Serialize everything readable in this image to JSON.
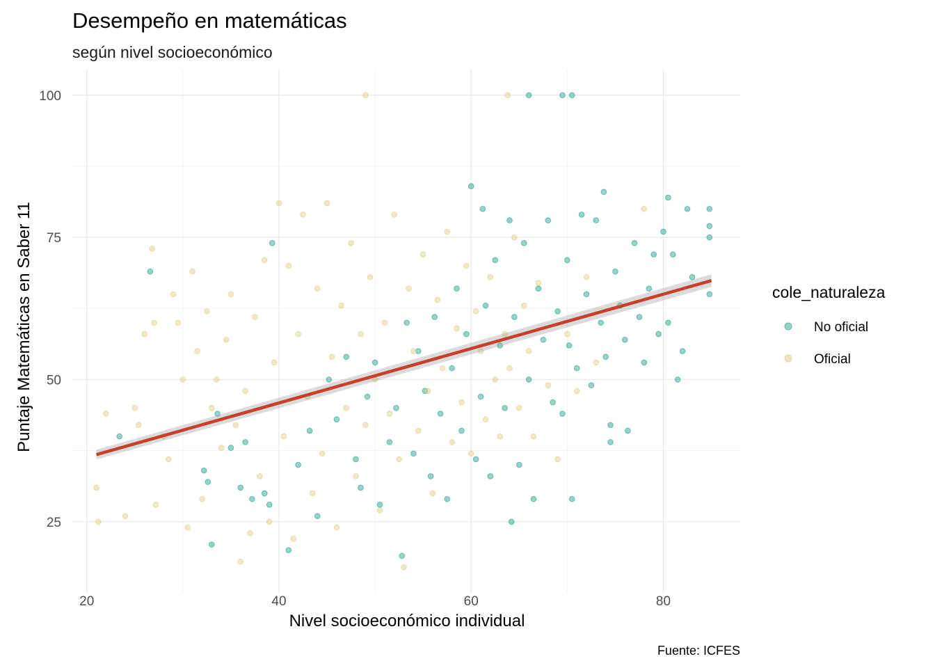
{
  "chart_data": {
    "type": "scatter",
    "title": "Desempeño en matemáticas",
    "subtitle": "según nivel socioeconómico",
    "xlabel": "Nivel socioeconómico individual",
    "ylabel": "Puntaje Matemáticas en Saber 11",
    "caption": "Fuente: ICFES",
    "xlim": [
      18.5,
      88
    ],
    "ylim": [
      12.5,
      104.5
    ],
    "x_ticks": [
      20,
      40,
      60,
      80
    ],
    "y_ticks": [
      25,
      50,
      75,
      100
    ],
    "grid": true,
    "legend": {
      "title": "cole_naturaleza",
      "position": "right",
      "entries": [
        {
          "label": "No oficial",
          "color": "#1b9e8a"
        },
        {
          "label": "Oficial",
          "color": "#e0cc86"
        }
      ]
    },
    "series": [
      {
        "name": "No oficial",
        "color": "#1b9e8a",
        "points": [
          [
            23.4,
            40
          ],
          [
            26.6,
            69
          ],
          [
            32.6,
            32
          ],
          [
            32.2,
            34
          ],
          [
            33,
            21
          ],
          [
            33.6,
            44
          ],
          [
            35,
            38
          ],
          [
            36,
            31
          ],
          [
            36.5,
            39
          ],
          [
            37.2,
            29
          ],
          [
            38.5,
            30
          ],
          [
            39,
            28
          ],
          [
            39.3,
            74
          ],
          [
            41,
            20
          ],
          [
            42,
            35
          ],
          [
            43.2,
            41
          ],
          [
            44,
            26
          ],
          [
            45.2,
            50
          ],
          [
            46,
            43
          ],
          [
            47,
            54
          ],
          [
            48,
            36
          ],
          [
            48.5,
            31
          ],
          [
            49.2,
            47
          ],
          [
            50,
            53
          ],
          [
            50.5,
            28
          ],
          [
            51.5,
            39
          ],
          [
            52.2,
            45
          ],
          [
            52.8,
            19
          ],
          [
            53.3,
            60
          ],
          [
            54,
            37
          ],
          [
            54.5,
            55
          ],
          [
            55.2,
            48
          ],
          [
            55.8,
            33
          ],
          [
            56.2,
            61
          ],
          [
            56.8,
            44
          ],
          [
            57.5,
            29
          ],
          [
            58,
            52
          ],
          [
            58.5,
            66
          ],
          [
            59,
            41
          ],
          [
            59.5,
            58
          ],
          [
            60,
            84
          ],
          [
            60.5,
            36
          ],
          [
            61,
            47
          ],
          [
            61.2,
            80
          ],
          [
            61.5,
            63
          ],
          [
            62,
            33
          ],
          [
            62.5,
            71
          ],
          [
            63,
            56
          ],
          [
            63.5,
            45
          ],
          [
            64,
            78
          ],
          [
            64.2,
            25
          ],
          [
            64.5,
            61
          ],
          [
            65,
            35
          ],
          [
            65.5,
            74
          ],
          [
            66,
            50
          ],
          [
            66,
            100
          ],
          [
            66.5,
            29
          ],
          [
            67,
            66
          ],
          [
            67.5,
            57
          ],
          [
            68,
            78
          ],
          [
            68.5,
            46
          ],
          [
            69,
            62
          ],
          [
            69.5,
            44
          ],
          [
            69.5,
            100
          ],
          [
            70,
            71
          ],
          [
            70.2,
            56
          ],
          [
            70.5,
            29
          ],
          [
            70.5,
            100
          ],
          [
            71,
            52
          ],
          [
            71.5,
            79
          ],
          [
            72,
            65
          ],
          [
            72.5,
            49
          ],
          [
            73,
            78
          ],
          [
            73.5,
            60
          ],
          [
            73.8,
            83
          ],
          [
            74,
            54
          ],
          [
            74.5,
            42
          ],
          [
            74.5,
            39
          ],
          [
            75,
            69
          ],
          [
            75.5,
            63
          ],
          [
            76,
            57
          ],
          [
            76.3,
            41
          ],
          [
            77,
            74
          ],
          [
            77.5,
            61
          ],
          [
            78,
            53
          ],
          [
            78.5,
            66
          ],
          [
            79,
            72
          ],
          [
            79.5,
            58
          ],
          [
            80,
            76
          ],
          [
            80.5,
            60
          ],
          [
            80.5,
            82
          ],
          [
            81,
            72
          ],
          [
            81.5,
            50
          ],
          [
            82,
            55
          ],
          [
            82.5,
            80
          ],
          [
            83,
            68
          ],
          [
            84.8,
            80
          ],
          [
            84.8,
            75
          ],
          [
            84.8,
            65
          ],
          [
            84.8,
            77
          ]
        ]
      },
      {
        "name": "Oficial",
        "color": "#e0cc86",
        "points": [
          [
            21,
            31
          ],
          [
            21.2,
            25
          ],
          [
            22,
            44
          ],
          [
            24,
            26
          ],
          [
            25,
            45
          ],
          [
            25.4,
            42
          ],
          [
            26,
            58
          ],
          [
            26.8,
            73
          ],
          [
            27,
            60
          ],
          [
            27.2,
            28
          ],
          [
            28,
            40
          ],
          [
            28.5,
            36
          ],
          [
            29,
            65
          ],
          [
            29.5,
            60
          ],
          [
            30,
            50
          ],
          [
            30.5,
            24
          ],
          [
            31,
            69
          ],
          [
            31.5,
            55
          ],
          [
            32,
            29
          ],
          [
            32.5,
            62
          ],
          [
            33,
            45
          ],
          [
            33.5,
            50
          ],
          [
            34,
            38
          ],
          [
            34.5,
            57
          ],
          [
            35,
            65
          ],
          [
            35.5,
            42
          ],
          [
            36,
            18
          ],
          [
            36.5,
            48
          ],
          [
            37,
            23
          ],
          [
            37.5,
            61
          ],
          [
            38,
            33
          ],
          [
            38.5,
            71
          ],
          [
            39,
            25
          ],
          [
            39.5,
            53
          ],
          [
            40,
            81
          ],
          [
            40.5,
            40
          ],
          [
            41,
            70
          ],
          [
            41.5,
            22
          ],
          [
            42,
            58
          ],
          [
            42.5,
            79
          ],
          [
            43,
            47
          ],
          [
            43.5,
            30
          ],
          [
            44,
            66
          ],
          [
            44.5,
            37
          ],
          [
            45,
            81
          ],
          [
            45.5,
            54
          ],
          [
            46,
            24
          ],
          [
            46.5,
            63
          ],
          [
            47,
            45
          ],
          [
            47.5,
            74
          ],
          [
            48,
            33
          ],
          [
            48.5,
            58
          ],
          [
            49,
            42
          ],
          [
            49,
            100
          ],
          [
            49.5,
            68
          ],
          [
            50,
            50
          ],
          [
            50.5,
            27
          ],
          [
            51,
            60
          ],
          [
            51.5,
            44
          ],
          [
            52,
            79
          ],
          [
            52.5,
            36
          ],
          [
            53,
            17
          ],
          [
            53.5,
            66
          ],
          [
            54,
            55
          ],
          [
            54.5,
            41
          ],
          [
            55,
            72
          ],
          [
            55.5,
            48
          ],
          [
            56,
            30
          ],
          [
            56.5,
            64
          ],
          [
            57,
            52
          ],
          [
            57.5,
            76
          ],
          [
            58,
            39
          ],
          [
            58.5,
            59
          ],
          [
            59,
            46
          ],
          [
            59.5,
            70
          ],
          [
            60,
            37
          ],
          [
            60.5,
            62
          ],
          [
            61,
            55
          ],
          [
            61.5,
            43
          ],
          [
            62,
            68
          ],
          [
            62.5,
            50
          ],
          [
            63,
            40
          ],
          [
            63.5,
            58
          ],
          [
            63.8,
            100
          ],
          [
            64,
            52
          ],
          [
            64.5,
            75
          ],
          [
            65,
            45
          ],
          [
            65.5,
            63
          ],
          [
            66,
            55
          ],
          [
            66.5,
            40
          ],
          [
            67,
            67
          ],
          [
            68,
            49
          ],
          [
            69,
            36
          ],
          [
            70,
            58
          ],
          [
            71,
            48
          ],
          [
            72,
            68
          ],
          [
            73,
            53
          ],
          [
            78,
            80
          ]
        ]
      }
    ],
    "trend": {
      "x": [
        21,
        85
      ],
      "y": [
        36.8,
        67.4
      ],
      "color": "#c8402a"
    }
  }
}
